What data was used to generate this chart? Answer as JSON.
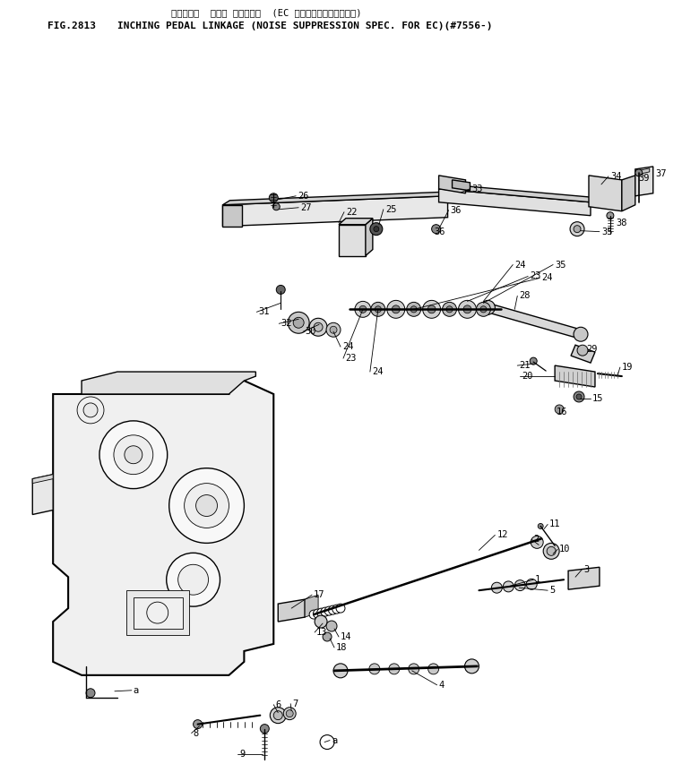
{
  "title_japanese": "インチング  ペダル リンケージ  (EC のノイズサプレッション)",
  "title_fig": "FIG.2813",
  "title_main": "INCHING PEDAL LINKAGE (NOISE SUPPRESSION SPEC. FOR EC)(#7556-)",
  "bg_color": "#ffffff",
  "line_color": "#000000",
  "text_color": "#000000",
  "fig_width": 7.61,
  "fig_height": 8.72,
  "dpi": 100
}
